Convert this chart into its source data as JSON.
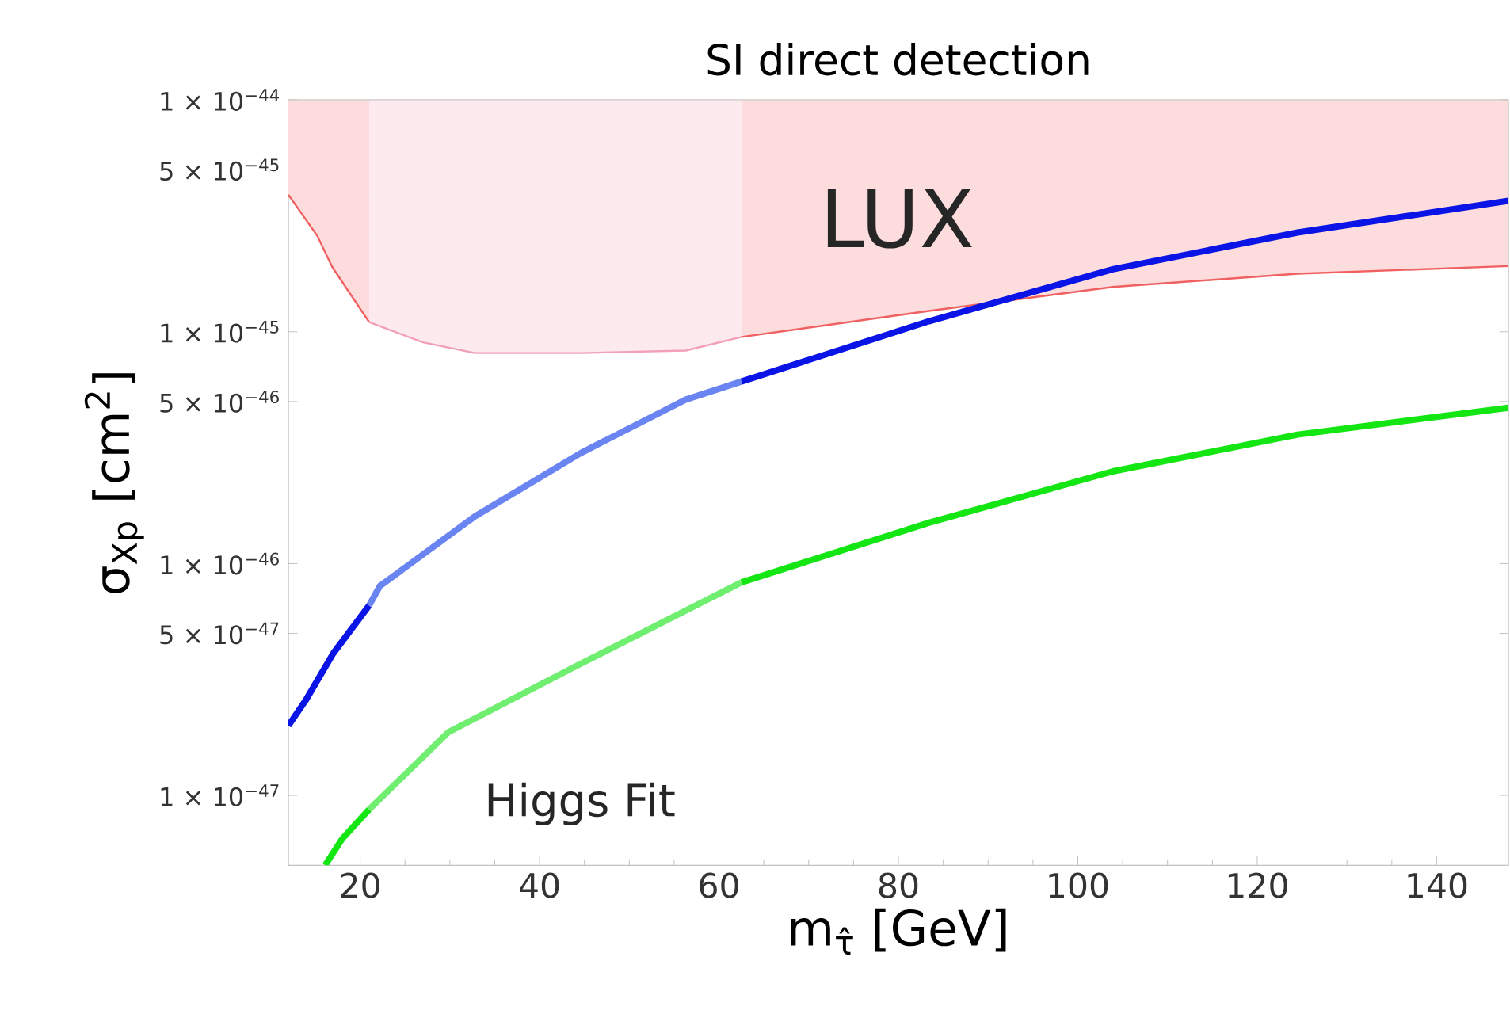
{
  "chart_data": {
    "type": "line",
    "title": "SI direct detection",
    "xlabel": "m$_{τ̂}$ [GeV]",
    "ylabel": "σ$_{Xp}$ [cm$^{2}$]",
    "xlim": [
      12,
      148
    ],
    "xticks": [
      20,
      40,
      60,
      80,
      100,
      120,
      140
    ],
    "ylim": [
      5e-48,
      1e-44
    ],
    "log": "y",
    "yticks": [
      {
        "value": 1e-44,
        "label": "1 × 10$^{−44}$"
      },
      {
        "value": 5e-45,
        "label": "5 × 10$^{−45}$"
      },
      {
        "value": 1e-45,
        "label": "1 × 10$^{−45}$"
      },
      {
        "value": 5e-46,
        "label": "5 × 10$^{−46}$"
      },
      {
        "value": 1e-46,
        "label": "1 × 10$^{−46}$"
      },
      {
        "value": 5e-47,
        "label": "5 × 10$^{−47}$"
      },
      {
        "value": 1e-47,
        "label": "1 × 10$^{−47}$"
      }
    ],
    "series": [
      {
        "color": "#f06060",
        "x": [
          12,
          15.2,
          16.9,
          21
        ],
        "values": [
          3.9e-45,
          2.6e-45,
          1.9e-45,
          1.1e-45
        ],
        "lower": [
          3.9e-45,
          2.6e-45,
          1.9e-45,
          1.1e-45
        ],
        "upper": [
          1e-44,
          1e-44,
          1e-44,
          1e-44
        ]
      },
      {
        "color": "#f2a0b8",
        "x": [
          21,
          27,
          32.8,
          44.6,
          56.3,
          62.5
        ],
        "values": [
          1.1e-45,
          9e-46,
          8.1e-46,
          8.1e-46,
          8.3e-46,
          9.5e-46
        ],
        "lower": [
          1.1e-45,
          9e-46,
          8.1e-46,
          8.1e-46,
          8.3e-46,
          9.5e-46
        ],
        "upper": [
          1e-44,
          1e-44,
          1e-44,
          1e-44,
          1e-44,
          1e-44
        ]
      },
      {
        "color": "#f06060",
        "x": [
          62.5,
          83.4,
          103.9,
          124.5,
          148
        ],
        "values": [
          9.5e-46,
          1.23e-45,
          1.56e-45,
          1.78e-45,
          1.92e-45
        ],
        "lower": [
          9.5e-46,
          1.23e-45,
          1.56e-45,
          1.78e-45,
          1.92e-45
        ],
        "upper": [
          1e-44,
          1e-44,
          1e-44,
          1e-44,
          1e-44
        ]
      },
      {
        "color": "#0a14e6",
        "x": [
          12,
          14,
          17,
          21
        ],
        "values": [
          2e-47,
          2.6e-47,
          4.1e-47,
          6.6e-47
        ]
      },
      {
        "color": "#6a84f2",
        "x": [
          21,
          22.2,
          32.8,
          44.6,
          56.3,
          62.5
        ],
        "values": [
          6.6e-47,
          8e-47,
          1.6e-46,
          3e-46,
          5.1e-46,
          6.1e-46
        ]
      },
      {
        "color": "#0a14e6",
        "x": [
          62.5,
          83.4,
          103.9,
          124.5,
          148
        ],
        "values": [
          6.1e-46,
          1.11e-45,
          1.86e-45,
          2.68e-45,
          3.67e-45
        ]
      },
      {
        "color": "#14e614",
        "x": [
          16.1,
          18,
          21
        ],
        "values": [
          5e-48,
          6.5e-48,
          8.7e-48
        ]
      },
      {
        "color": "#70ee70",
        "x": [
          21,
          29.8,
          44.6,
          62.5
        ],
        "values": [
          8.7e-48,
          1.87e-47,
          3.7e-47,
          8.3e-47
        ]
      },
      {
        "color": "#14e614",
        "x": [
          62.5,
          83.4,
          103.9,
          124.5,
          148
        ],
        "values": [
          8.3e-47,
          1.5e-46,
          2.5e-46,
          3.6e-46,
          4.7e-46
        ]
      }
    ],
    "annotations": [
      "LUX",
      "Higgs Fit"
    ]
  }
}
